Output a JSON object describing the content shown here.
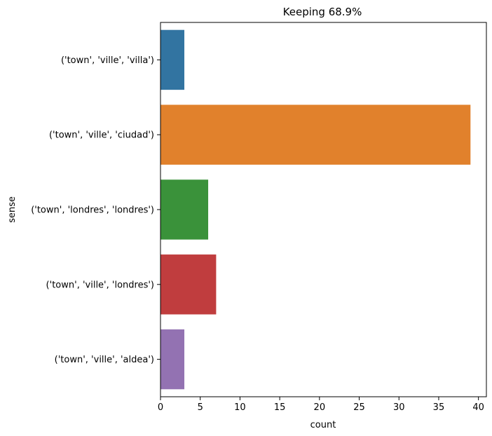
{
  "chart_data": {
    "type": "bar",
    "orientation": "horizontal",
    "title": "Keeping 68.9%",
    "xlabel": "count",
    "ylabel": "sense",
    "xlim": [
      0,
      41
    ],
    "xticks": [
      0,
      5,
      10,
      15,
      20,
      25,
      30,
      35,
      40
    ],
    "grid": false,
    "categories": [
      "('town', 'ville', 'villa')",
      "('town', 'ville', 'ciudad')",
      "('town', 'londres', 'londres')",
      "('town', 'ville', 'londres')",
      "('town', 'ville', 'aldea')"
    ],
    "values": [
      3,
      39,
      6,
      7,
      3
    ],
    "colors": [
      "#3274a1",
      "#e1812c",
      "#3a923a",
      "#c03d3e",
      "#9372b2"
    ]
  }
}
